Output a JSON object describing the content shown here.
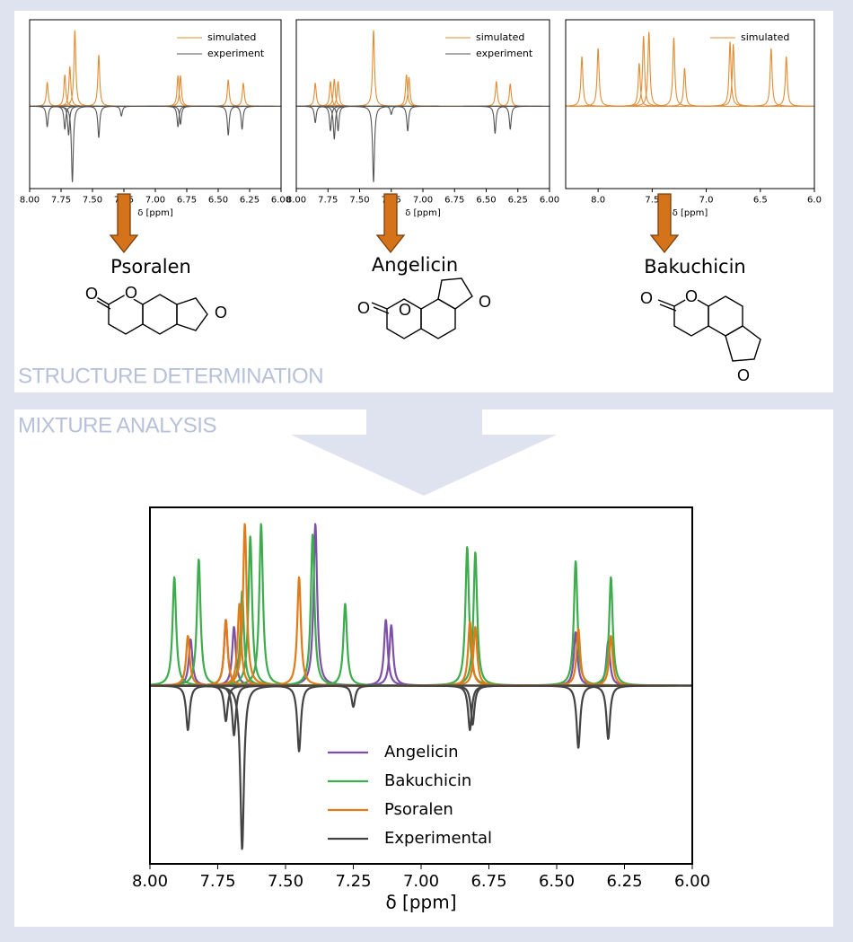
{
  "sections": {
    "structure": "STRUCTURE DETERMINATION",
    "mixture": "MIXTURE ANALYSIS"
  },
  "compounds": [
    {
      "name": "Psoralen",
      "atoms": [
        "O",
        "O",
        "O"
      ]
    },
    {
      "name": "Angelicin",
      "atoms": [
        "O",
        "O",
        "O"
      ]
    },
    {
      "name": "Bakuchicin",
      "atoms": [
        "O",
        "O",
        "O"
      ]
    }
  ],
  "chart_data": [
    {
      "type": "nmr",
      "xlabel": "δ [ppm]",
      "xlim": [
        8.0,
        6.0
      ],
      "ylim": [
        -1,
        1.05
      ],
      "legend": "upper right",
      "xticks": [
        {
          "value": 8.0,
          "label": "8.00"
        },
        {
          "value": 7.75,
          "label": "7.75"
        },
        {
          "value": 7.5,
          "label": "7.50"
        },
        {
          "value": 7.25,
          "label": "7.25"
        },
        {
          "value": 7.0,
          "label": "7.00"
        },
        {
          "value": 6.75,
          "label": "6.75"
        },
        {
          "value": 6.5,
          "label": "6.50"
        },
        {
          "value": 6.25,
          "label": "6.25"
        },
        {
          "value": 6.0,
          "label": "6.00"
        }
      ],
      "series": [
        {
          "name": "simulated",
          "color": "#e38b32",
          "x": [
            7.86,
            7.72,
            7.68,
            7.64,
            7.45,
            6.82,
            6.8,
            6.42,
            6.3
          ],
          "values": [
            0.29,
            0.38,
            0.48,
            0.92,
            0.62,
            0.37,
            0.37,
            0.32,
            0.28
          ]
        },
        {
          "name": "experiment",
          "color": "#555555",
          "x": [
            7.86,
            7.72,
            7.69,
            7.66,
            7.45,
            7.27,
            6.82,
            6.8,
            6.42,
            6.31
          ],
          "values": [
            -0.25,
            -0.28,
            -0.35,
            -0.92,
            -0.38,
            -0.12,
            -0.25,
            -0.22,
            -0.35,
            -0.28
          ]
        }
      ]
    },
    {
      "type": "nmr",
      "xlabel": "δ [ppm]",
      "xlim": [
        8.0,
        6.0
      ],
      "ylim": [
        -1,
        1.05
      ],
      "legend": "upper right",
      "xticks": [
        {
          "value": 8.0,
          "label": "8.00"
        },
        {
          "value": 7.75,
          "label": "7.75"
        },
        {
          "value": 7.5,
          "label": "7.50"
        },
        {
          "value": 7.25,
          "label": "7.25"
        },
        {
          "value": 7.0,
          "label": "7.00"
        },
        {
          "value": 6.75,
          "label": "6.75"
        },
        {
          "value": 6.5,
          "label": "6.50"
        },
        {
          "value": 6.25,
          "label": "6.25"
        },
        {
          "value": 6.0,
          "label": "6.00"
        }
      ],
      "series": [
        {
          "name": "simulated",
          "color": "#e38b32",
          "x": [
            7.85,
            7.73,
            7.7,
            7.67,
            7.39,
            7.13,
            7.11,
            6.42,
            6.31
          ],
          "values": [
            0.28,
            0.3,
            0.33,
            0.3,
            0.92,
            0.38,
            0.35,
            0.3,
            0.27
          ]
        },
        {
          "name": "experiment",
          "color": "#555555",
          "x": [
            7.85,
            7.73,
            7.7,
            7.67,
            7.39,
            7.25,
            7.12,
            6.43,
            6.31
          ],
          "values": [
            -0.2,
            -0.3,
            -0.4,
            -0.3,
            -0.92,
            -0.1,
            -0.3,
            -0.33,
            -0.28
          ]
        }
      ]
    },
    {
      "type": "nmr",
      "xlabel": "δ [ppm]",
      "xlim": [
        8.3,
        6.0
      ],
      "ylim": [
        -1,
        1.05
      ],
      "legend": "upper right",
      "xticks": [
        {
          "value": 8.0,
          "label": "8.0"
        },
        {
          "value": 7.5,
          "label": "7.5"
        },
        {
          "value": 7.0,
          "label": "7.0"
        },
        {
          "value": 6.5,
          "label": "6.5"
        },
        {
          "value": 6.0,
          "label": "6.0"
        }
      ],
      "series": [
        {
          "name": "simulated",
          "color": "#e38b32",
          "x": [
            8.15,
            8.0,
            7.62,
            7.58,
            7.53,
            7.3,
            7.2,
            6.78,
            6.75,
            6.4,
            6.26
          ],
          "values": [
            0.6,
            0.7,
            0.52,
            0.85,
            0.9,
            0.83,
            0.46,
            0.78,
            0.75,
            0.7,
            0.6
          ]
        }
      ]
    },
    {
      "type": "nmr",
      "xlabel": "δ [ppm]",
      "xlim": [
        8.0,
        6.0
      ],
      "ylim": [
        -1,
        1
      ],
      "legend": "lower center",
      "xticks": [
        {
          "value": 8.0,
          "label": "8.00"
        },
        {
          "value": 7.75,
          "label": "7.75"
        },
        {
          "value": 7.5,
          "label": "7.50"
        },
        {
          "value": 7.25,
          "label": "7.25"
        },
        {
          "value": 7.0,
          "label": "7.00"
        },
        {
          "value": 6.75,
          "label": "6.75"
        },
        {
          "value": 6.5,
          "label": "6.50"
        },
        {
          "value": 6.25,
          "label": "6.25"
        },
        {
          "value": 6.0,
          "label": "6.00"
        }
      ],
      "series": [
        {
          "name": "Angelicin",
          "color": "#7d4fa6",
          "x": [
            7.85,
            7.72,
            7.69,
            7.39,
            7.13,
            7.11,
            6.43,
            6.31
          ],
          "values": [
            0.26,
            0.37,
            0.33,
            0.91,
            0.37,
            0.34,
            0.3,
            0.25
          ]
        },
        {
          "name": "Bakuchicin",
          "color": "#3cac4c",
          "x": [
            7.91,
            7.82,
            7.66,
            7.63,
            7.59,
            7.4,
            7.28,
            6.83,
            6.8,
            6.43,
            6.3
          ],
          "values": [
            0.61,
            0.71,
            0.53,
            0.84,
            0.91,
            0.85,
            0.46,
            0.78,
            0.75,
            0.7,
            0.61
          ]
        },
        {
          "name": "Psoralen",
          "color": "#e07b18",
          "x": [
            7.86,
            7.72,
            7.67,
            7.65,
            7.45,
            6.82,
            6.8,
            6.42,
            6.3
          ],
          "values": [
            0.28,
            0.37,
            0.46,
            0.91,
            0.61,
            0.36,
            0.33,
            0.32,
            0.28
          ]
        },
        {
          "name": "Experimental",
          "color": "#444444",
          "x": [
            7.86,
            7.72,
            7.69,
            7.66,
            7.45,
            7.25,
            6.82,
            6.81,
            6.42,
            6.31
          ],
          "values": [
            -0.25,
            -0.2,
            -0.28,
            -0.92,
            -0.37,
            -0.12,
            -0.25,
            -0.22,
            -0.35,
            -0.3
          ]
        }
      ]
    }
  ]
}
